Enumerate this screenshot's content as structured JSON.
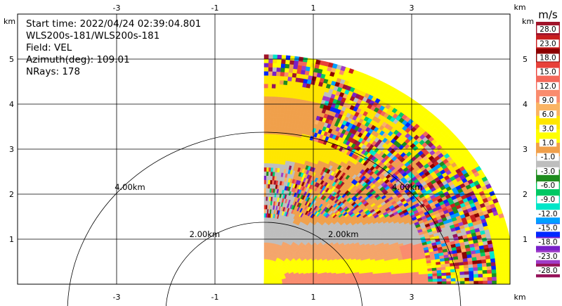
{
  "chart_data": {
    "type": "heatmap",
    "description_fields": {
      "start_time": "Start time: 2022/04/24 02:39:04.801",
      "instrument": "WLS200s-181/WLS200s-181",
      "field": "Field: VEL",
      "azimuth": "Azimuth(deg): 109.01",
      "nrays": "NRays: 178"
    },
    "x_unit": "km",
    "y_unit": "km",
    "xlim": [
      -5.1,
      5.0
    ],
    "ylim": [
      0,
      5.4
    ],
    "x_ticks": [
      -3,
      -1,
      1,
      3
    ],
    "y_ticks": [
      1,
      2,
      3,
      4,
      5
    ],
    "range_rings": [
      {
        "radius_km": 2,
        "label": "2.00km"
      },
      {
        "radius_km": 4,
        "label": "4.00km"
      }
    ],
    "sector": {
      "origin": [
        0,
        0
      ],
      "az_min_deg": 0,
      "az_max_deg": 90,
      "max_range_km": 5.1
    },
    "colorbar": {
      "unit": "m/s",
      "labels": [
        "28.0",
        "23.0",
        "18.0",
        "15.0",
        "12.0",
        "9.0",
        "6.0",
        "3.0",
        "1.0",
        "-1.0",
        "-3.0",
        "-6.0",
        "-9.0",
        "-12.0",
        "-15.0",
        "-18.0",
        "-23.0",
        "-28.0"
      ],
      "colors": [
        "#a0142a",
        "#c81e1e",
        "#8c0000",
        "#e8413a",
        "#f4685a",
        "#fa8c6e",
        "#fab464",
        "#ffe600",
        "#ffff00",
        "#f0a04b",
        "#bebebe",
        "#1e8c1e",
        "#00c864",
        "#00e6c8",
        "#00a0ff",
        "#0028ff",
        "#7820c8",
        "#a03cc8",
        "#96145a"
      ]
    }
  }
}
